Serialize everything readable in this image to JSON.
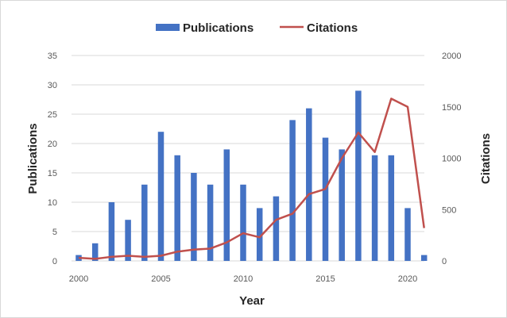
{
  "chart_data": {
    "type": "bar+line",
    "title": "",
    "xlabel": "Year",
    "ylabel_left": "Publications",
    "ylabel_right": "Citations",
    "x": [
      2000,
      2001,
      2002,
      2003,
      2004,
      2005,
      2006,
      2007,
      2008,
      2009,
      2010,
      2011,
      2012,
      2013,
      2014,
      2015,
      2016,
      2017,
      2018,
      2019,
      2020,
      2021
    ],
    "x_ticks": [
      2000,
      2005,
      2010,
      2015,
      2020
    ],
    "ylim_left": [
      0,
      35
    ],
    "yticks_left": [
      0,
      5,
      10,
      15,
      20,
      25,
      30,
      35
    ],
    "ylim_right": [
      0,
      2000
    ],
    "yticks_right": [
      0,
      500,
      1000,
      1500,
      2000
    ],
    "grid": true,
    "legend": "top-center",
    "series": [
      {
        "name": "Publications",
        "kind": "bar",
        "axis": "left",
        "color": "#4472c4",
        "values": [
          1,
          3,
          10,
          7,
          13,
          22,
          18,
          15,
          13,
          19,
          13,
          9,
          11,
          24,
          26,
          21,
          19,
          29,
          18,
          18,
          9,
          1
        ]
      },
      {
        "name": "Citations",
        "kind": "line",
        "axis": "right",
        "color": "#c0504d",
        "values": [
          30,
          20,
          40,
          50,
          40,
          50,
          90,
          110,
          120,
          180,
          270,
          230,
          400,
          460,
          650,
          700,
          1000,
          1250,
          1060,
          1580,
          1500,
          320
        ]
      }
    ]
  }
}
